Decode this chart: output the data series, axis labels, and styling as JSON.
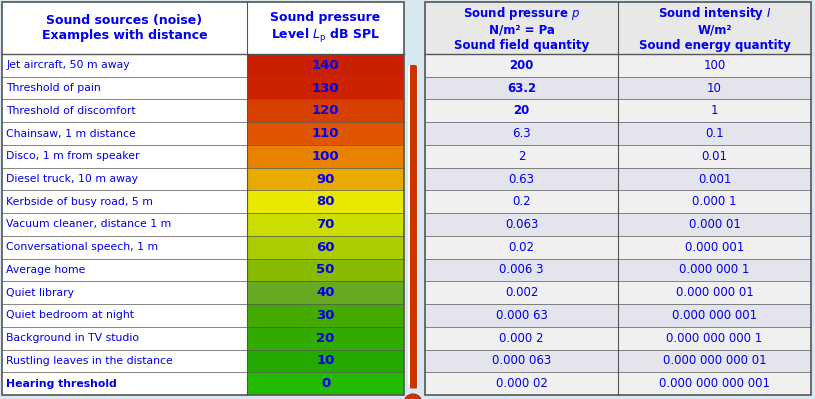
{
  "left_header1": "Sound sources (noise)\nExamples with distance",
  "left_header2": "Sound pressure\nLevel $L_\\mathrm{p}$ dB SPL",
  "right_header1": "Sound pressure $p$\nN/m² = Pa\nSound field quantity",
  "right_header2": "Sound intensity $I$\nW/m²\nSound energy quantity",
  "sources": [
    "Jet aircraft, 50 m away",
    "Threshold of pain",
    "Threshold of discomfort",
    "Chainsaw, 1 m distance",
    "Disco, 1 m from speaker",
    "Diesel truck, 10 m away",
    "Kerbside of busy road, 5 m",
    "Vacuum cleaner, distance 1 m",
    "Conversational speech, 1 m",
    "Average home",
    "Quiet library",
    "Quiet bedroom at night",
    "Background in TV studio",
    "Rustling leaves in the distance",
    "Hearing threshold"
  ],
  "levels": [
    "140",
    "130",
    "120",
    "110",
    "100",
    "90",
    "80",
    "70",
    "60",
    "50",
    "40",
    "30",
    "20",
    "10",
    "0"
  ],
  "level_colors": [
    "#C82000",
    "#CC2200",
    "#D84000",
    "#E05500",
    "#E88000",
    "#E8AA00",
    "#E8E800",
    "#CCDD00",
    "#AACC00",
    "#88BB00",
    "#66AA22",
    "#44AA00",
    "#33AA00",
    "#22AA00",
    "#22BB00"
  ],
  "pressure_values": [
    "200",
    "63.2",
    "20",
    "6.3",
    "2",
    "0.63",
    "0.2",
    "0.063",
    "0.02",
    "0.006 3",
    "0.002",
    "0.000 63",
    "0.000 2",
    "0.000 063",
    "0.000 02"
  ],
  "intensity_values": [
    "100",
    "10",
    "1",
    "0.1",
    "0.01",
    "0.001",
    "0.000 1",
    "0.000 01",
    "0.000 001",
    "0.000 000 1",
    "0.000 000 01",
    "0.000 000 001",
    "0.000 000 000 1",
    "0.000 000 000 01",
    "0.000 000 000 001"
  ],
  "header_bg_left": "#FFFFFF",
  "header_bg_right": "#E8E8E8",
  "header_text_color": "#0000EE",
  "data_text_color": "#0000EE",
  "source_row_bg": "#FFFFFF",
  "right_row_bg_even": "#F0F0F0",
  "right_row_bg_odd": "#E4E4EC",
  "border_color": "#666666",
  "thermometer_color": "#CC3300",
  "background_color": "#D8E8F0"
}
